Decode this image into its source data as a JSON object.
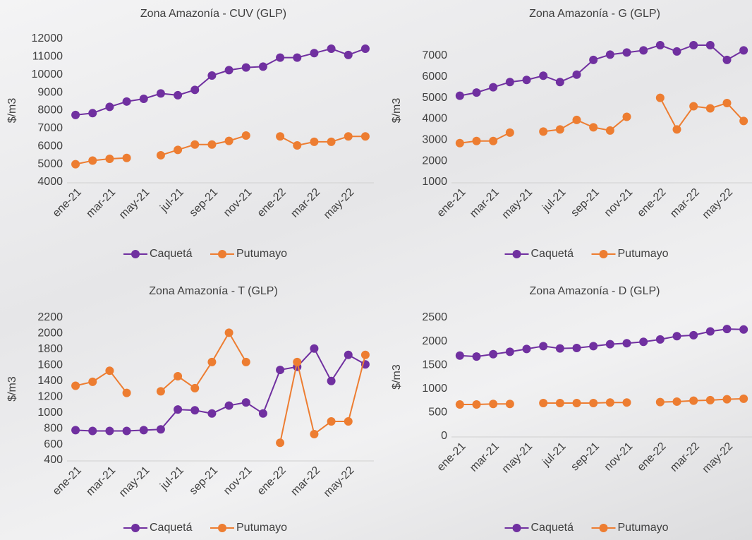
{
  "chart_data": [
    {
      "type": "line",
      "title": "Zona Amazonía - CUV (GLP)",
      "y_label": "$/m3",
      "categories": [
        "ene-21",
        null,
        "mar-21",
        null,
        "may-21",
        null,
        "jul-21",
        null,
        "sep-21",
        null,
        "nov-21",
        null,
        "ene-22",
        null,
        "mar-22",
        null,
        "may-22",
        null
      ],
      "series": [
        {
          "name": "Caquetá",
          "color": "#7030a0",
          "values": [
            7750,
            7850,
            8200,
            8500,
            8650,
            8950,
            8850,
            9150,
            9950,
            10250,
            10400,
            10450,
            10950,
            10950,
            11200,
            11450,
            11100,
            11450
          ]
        },
        {
          "name": "Putumayo",
          "color": "#ed7d31",
          "values": [
            5000,
            5200,
            5300,
            5350,
            null,
            5500,
            5800,
            6100,
            6100,
            6300,
            6600,
            null,
            6550,
            6050,
            6250,
            6250,
            6550,
            6550
          ]
        }
      ],
      "ylim": [
        4000,
        12000
      ],
      "yticks": [
        4000,
        5000,
        6000,
        7000,
        8000,
        9000,
        10000,
        11000,
        12000
      ],
      "grid": false,
      "legend": "bottom"
    },
    {
      "type": "line",
      "title": "Zona Amazonía  - G (GLP)",
      "y_label": "$/m3",
      "categories": [
        "ene-21",
        null,
        "mar-21",
        null,
        "may-21",
        null,
        "jul-21",
        null,
        "sep-21",
        null,
        "nov-21",
        null,
        "ene-22",
        null,
        "mar-22",
        null,
        "may-22",
        null
      ],
      "series": [
        {
          "name": "Caquetá",
          "color": "#7030a0",
          "values": [
            5100,
            5250,
            5500,
            5750,
            5850,
            6050,
            5750,
            6100,
            6800,
            7050,
            7150,
            7250,
            7500,
            7200,
            7500,
            7500,
            6800,
            7250
          ]
        },
        {
          "name": "Putumayo",
          "color": "#ed7d31",
          "values": [
            2850,
            2950,
            2950,
            3350,
            null,
            3400,
            3500,
            3950,
            3600,
            3450,
            4100,
            null,
            5000,
            3500,
            4600,
            4500,
            4750,
            3900
          ]
        }
      ],
      "ylim": [
        1000,
        7800
      ],
      "yticks": [
        1000,
        2000,
        3000,
        4000,
        5000,
        6000,
        7000
      ],
      "grid": false,
      "legend": "bottom"
    },
    {
      "type": "line",
      "title": "Zona Amazonía - T (GLP)",
      "y_label": "$/m3",
      "categories": [
        "ene-21",
        null,
        "mar-21",
        null,
        "may-21",
        null,
        "jul-21",
        null,
        "sep-21",
        null,
        "nov-21",
        null,
        "ene-22",
        null,
        "mar-22",
        null,
        "may-22",
        null
      ],
      "series": [
        {
          "name": "Caquetá",
          "color": "#7030a0",
          "values": [
            780,
            770,
            770,
            770,
            780,
            790,
            1040,
            1030,
            990,
            1090,
            1130,
            990,
            1540,
            1580,
            1810,
            1400,
            1730,
            1610
          ]
        },
        {
          "name": "Putumayo",
          "color": "#ed7d31",
          "values": [
            1340,
            1390,
            1530,
            1250,
            null,
            1270,
            1460,
            1310,
            1640,
            2010,
            1640,
            null,
            620,
            1640,
            730,
            890,
            890,
            1730
          ]
        }
      ],
      "ylim": [
        400,
        2200
      ],
      "yticks": [
        400,
        600,
        800,
        1000,
        1200,
        1400,
        1600,
        1800,
        2000,
        2200
      ],
      "grid": false,
      "legend": "bottom"
    },
    {
      "type": "line",
      "title": "Zona Amazonía - D (GLP)",
      "y_label": "$/m3",
      "categories": [
        "ene-21",
        null,
        "mar-21",
        null,
        "may-21",
        null,
        "jul-21",
        null,
        "sep-21",
        null,
        "nov-21",
        null,
        "ene-22",
        null,
        "mar-22",
        null,
        "may-22",
        null
      ],
      "series": [
        {
          "name": "Caquetá",
          "color": "#7030a0",
          "values": [
            1700,
            1680,
            1730,
            1780,
            1840,
            1900,
            1850,
            1860,
            1900,
            1940,
            1960,
            1990,
            2040,
            2110,
            2130,
            2210,
            2260,
            2250
          ]
        },
        {
          "name": "Putumayo",
          "color": "#ed7d31",
          "values": [
            670,
            670,
            680,
            680,
            null,
            700,
            700,
            700,
            700,
            710,
            710,
            null,
            720,
            730,
            750,
            760,
            780,
            790
          ]
        }
      ],
      "ylim": [
        0,
        2500
      ],
      "yticks": [
        0,
        500,
        1000,
        1500,
        2000,
        2500
      ],
      "grid": false,
      "legend": "bottom"
    }
  ]
}
